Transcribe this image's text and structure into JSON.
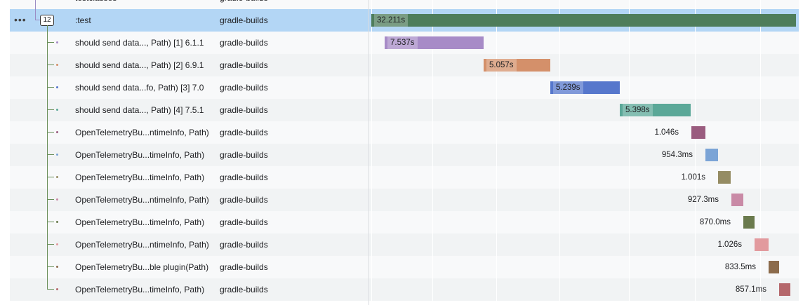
{
  "top_row": {
    "name": "testclasses",
    "service": "gradle-builds"
  },
  "rows": [
    {
      "count": "12",
      "name": ":test",
      "service": "gradle-builds",
      "duration": "32.211s"
    },
    {
      "name": "should send data..., Path) [1] 6.1.1",
      "service": "gradle-builds",
      "duration": "7.537s"
    },
    {
      "name": "should send data..., Path) [2] 6.9.1",
      "service": "gradle-builds",
      "duration": "5.057s"
    },
    {
      "name": "should send data...fo, Path) [3] 7.0",
      "service": "gradle-builds",
      "duration": "5.239s"
    },
    {
      "name": "should send data..., Path) [4] 7.5.1",
      "service": "gradle-builds",
      "duration": "5.398s"
    },
    {
      "name": "OpenTelemetryBu...ntimeInfo, Path)",
      "service": "gradle-builds",
      "duration": "1.046s"
    },
    {
      "name": "OpenTelemetryBu...timeInfo, Path)",
      "service": "gradle-builds",
      "duration": "954.3ms"
    },
    {
      "name": "OpenTelemetryBu...timeInfo, Path)",
      "service": "gradle-builds",
      "duration": "1.001s"
    },
    {
      "name": "OpenTelemetryBu...ntimeInfo, Path)",
      "service": "gradle-builds",
      "duration": "927.3ms"
    },
    {
      "name": "OpenTelemetryBu...timeInfo, Path)",
      "service": "gradle-builds",
      "duration": "870.0ms"
    },
    {
      "name": "OpenTelemetryBu...ntimeInfo, Path)",
      "service": "gradle-builds",
      "duration": "1.026s"
    },
    {
      "name": "OpenTelemetryBu...ble plugin(Path)",
      "service": "gradle-builds",
      "duration": "833.5ms"
    },
    {
      "name": "OpenTelemetryBu...timeInfo, Path)",
      "service": "gradle-builds",
      "duration": "857.1ms"
    }
  ]
}
